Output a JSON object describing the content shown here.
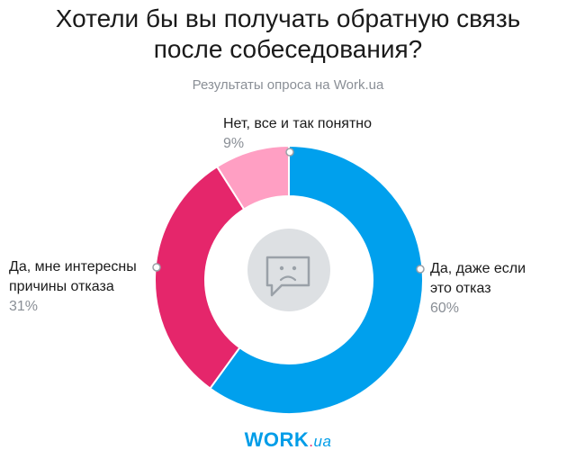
{
  "title_line1": "Хотели бы вы получать обратную связь",
  "title_line2": "после собеседования?",
  "subtitle": "Результаты опроса на Work.ua",
  "logo": {
    "main": "WORK",
    "dot": ".",
    "suffix": "ua"
  },
  "center_icon": "sad-face-speech-bubble-icon",
  "chart_data": {
    "type": "pie",
    "donut": true,
    "title": "Хотели бы вы получать обратную связь после собеседования?",
    "subtitle": "Результаты опроса на Work.ua",
    "slices": [
      {
        "label_lines": [
          "Да, даже если",
          "это отказ"
        ],
        "value": 60,
        "value_label": "60%",
        "color": "#00a0ed"
      },
      {
        "label_lines": [
          "Да, мне интересны",
          "причины отказа"
        ],
        "value": 31,
        "value_label": "31%",
        "color": "#e5266b"
      },
      {
        "label_lines": [
          "Нет, все и так понятно"
        ],
        "value": 9,
        "value_label": "9%",
        "color": "#ff9fc3"
      }
    ]
  }
}
